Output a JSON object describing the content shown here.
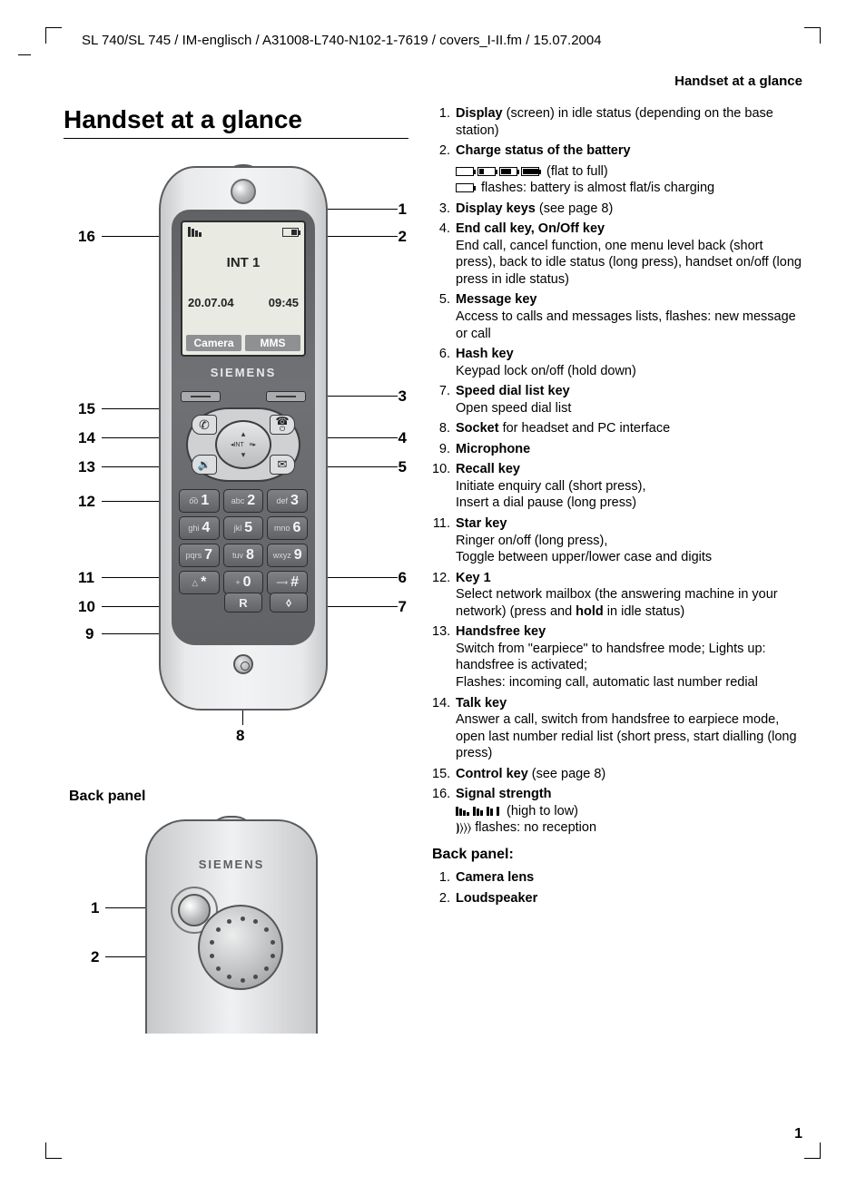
{
  "header": "SL 740/SL 745 / IM-englisch / A31008-L740-N102-1-7619 / covers_I-II.fm / 15.07.2004",
  "running_head": "Handset at a glance",
  "title": "Handset at a glance",
  "back_panel_heading": "Back panel",
  "page_number": "1",
  "screen": {
    "int_label": "INT 1",
    "date": "20.07.04",
    "time": "09:45",
    "softkey_left": "Camera",
    "softkey_right": "MMS"
  },
  "brand": "SIEMENS",
  "keypad": [
    {
      "letters": "o͡o",
      "digit": "1"
    },
    {
      "letters": "abc",
      "digit": "2"
    },
    {
      "letters": "def",
      "digit": "3"
    },
    {
      "letters": "ghi",
      "digit": "4"
    },
    {
      "letters": "jkl",
      "digit": "5"
    },
    {
      "letters": "mno",
      "digit": "6"
    },
    {
      "letters": "pqrs",
      "digit": "7"
    },
    {
      "letters": "tuv",
      "digit": "8"
    },
    {
      "letters": "wxyz",
      "digit": "9"
    },
    {
      "letters": "△",
      "digit": "*"
    },
    {
      "letters": "+",
      "digit": "0"
    },
    {
      "letters": "⟶",
      "digit": "#"
    }
  ],
  "bottom_keys": {
    "recall": "R",
    "speed": "⬨"
  },
  "callouts_front": {
    "c1": "1",
    "c2": "2",
    "c3": "3",
    "c4": "4",
    "c5": "5",
    "c6": "6",
    "c7": "7",
    "c8": "8",
    "c9": "9",
    "c10": "10",
    "c11": "11",
    "c12": "12",
    "c13": "13",
    "c14": "14",
    "c15": "15",
    "c16": "16"
  },
  "callouts_back": {
    "b1": "1",
    "b2": "2"
  },
  "feature_list": [
    {
      "n": "1.",
      "title": "Display",
      "body": " (screen) in idle status (depending on the base station)"
    },
    {
      "n": "2.",
      "title": "Charge status of the battery",
      "body": ""
    },
    {
      "n": "",
      "title": "",
      "body_batt": true
    },
    {
      "n": "3.",
      "title": "Display keys",
      "body": " (see page 8)"
    },
    {
      "n": "4.",
      "title": "End call key, On/Off key",
      "body": "\nEnd call, cancel function, one menu level back (short press), back to idle status (long press), handset on/off (long press in idle status)"
    },
    {
      "n": "5.",
      "title": "Message key",
      "body": "\nAccess to calls and messages lists, flashes: new message or call"
    },
    {
      "n": "6.",
      "title": "Hash key",
      "body": "\nKeypad lock on/off (hold down)"
    },
    {
      "n": "7.",
      "title": "Speed dial list key",
      "body": "\nOpen speed dial list"
    },
    {
      "n": "8.",
      "title": "Socket",
      "body": " for headset and PC interface"
    },
    {
      "n": "9.",
      "title": "Microphone",
      "body": ""
    },
    {
      "n": "10.",
      "title": "Recall key",
      "body": "\nInitiate enquiry call (short press),\nInsert a dial pause (long press)"
    },
    {
      "n": "11.",
      "title": "Star key",
      "body": "\nRinger on/off (long press),\nToggle between upper/lower case and digits"
    },
    {
      "n": "12.",
      "title": "Key 1",
      "body": "\n Select network mailbox (the answering machine in your network) (press and hold in idle status)",
      "hold_bold": true
    },
    {
      "n": "13.",
      "title": "Handsfree key",
      "body": "\nSwitch from \"earpiece\" to handsfree mode; Lights up: handsfree is activated;\nFlashes: incoming call, automatic last number redial"
    },
    {
      "n": "14.",
      "title": "Talk key",
      "body": "\nAnswer a call, switch from handsfree to earpiece mode, open last number redial list (short press, start dialling (long press)"
    },
    {
      "n": "15.",
      "title": "Control key",
      "body": " (see page 8)"
    },
    {
      "n": "16.",
      "title": "Signal strength",
      "body": "",
      "sig": true
    }
  ],
  "batt_line_suffix": " (flat to full)",
  "batt_flash_line": " flashes: battery is almost flat/is charging",
  "sig_suffix": " (high to low)",
  "sig_flash": " flashes: no reception",
  "back_panel_list_heading": "Back panel:",
  "back_panel_items": [
    {
      "n": "1.",
      "title": "Camera lens"
    },
    {
      "n": "2.",
      "title": "Loudspeaker"
    }
  ],
  "colors": {
    "body_light": "#e9eaec",
    "body_dark": "#606265",
    "screen_bg": "#e9ebe3",
    "softkey_bg": "#8f9092",
    "key_bg": "#7f8184"
  }
}
